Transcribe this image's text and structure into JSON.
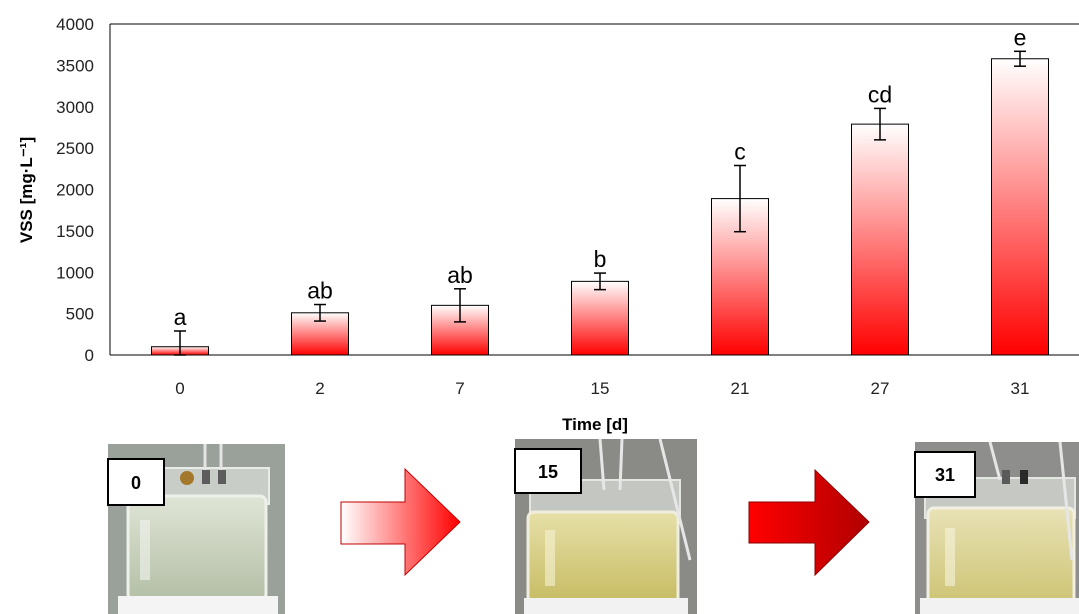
{
  "chart_data": {
    "type": "bar",
    "categories": [
      "0",
      "2",
      "7",
      "15",
      "21",
      "27",
      "31"
    ],
    "values": [
      100,
      510,
      600,
      890,
      1890,
      2790,
      3580
    ],
    "errors": [
      190,
      100,
      200,
      100,
      400,
      190,
      90
    ],
    "significance_labels": [
      "a",
      "ab",
      "ab",
      "b",
      "c",
      "cd",
      "e"
    ],
    "xlabel": "Time [d]",
    "ylabel": "VSS [mg·L⁻¹]",
    "ylim": [
      0,
      4000
    ],
    "yticks": [
      0,
      500,
      1000,
      1500,
      2000,
      2500,
      3000,
      3500,
      4000
    ],
    "bar_gradient": {
      "top": "#ffffff",
      "bottom": "#ff0000"
    },
    "bar_edge": "#000000"
  },
  "photos": [
    {
      "label": "0",
      "tint": "#c8d0b8"
    },
    {
      "label": "15",
      "tint": "#d6cf8a"
    },
    {
      "label": "31",
      "tint": "#d8d29a"
    }
  ],
  "arrows": [
    {
      "gradient_start": "#ffffff",
      "gradient_end": "#ff0000"
    },
    {
      "gradient_start": "#ff0000",
      "gradient_end": "#b00000"
    }
  ]
}
